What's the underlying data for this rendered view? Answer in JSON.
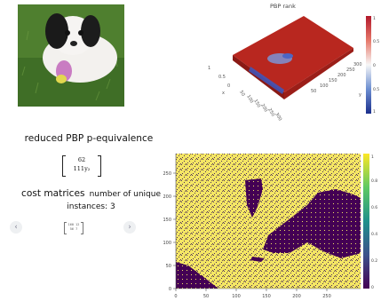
{
  "plot3d": {
    "title": "PBP rank",
    "axis_ticks": [
      "1",
      "0.5",
      "0",
      "50",
      "100",
      "150",
      "200",
      "250",
      "300"
    ],
    "yaxis_ticks": [
      "50",
      "100",
      "150",
      "200",
      "250",
      "300"
    ],
    "x_label": "x",
    "y_label": "y",
    "colorbar_ticks": [
      "1",
      "0.5",
      "0",
      "0.5",
      "1"
    ]
  },
  "equivalence_title": "reduced PBP p-equivalence",
  "matrix_main": {
    "row1": "62",
    "row2": "111y₂"
  },
  "cost_title": "cost matrices",
  "cost_subtitle": "number of unique",
  "cost_instances": "instances: 3",
  "nav": {
    "prev": "‹",
    "next": "›"
  },
  "matrix_small": {
    "row1": "160  12",
    "row2": "56    7"
  },
  "heatmap": {
    "x_ticks": [
      "0",
      "50",
      "100",
      "150",
      "200",
      "250"
    ],
    "y_ticks": [
      "0",
      "50",
      "100",
      "150",
      "200",
      "250"
    ],
    "colorbar_ticks": [
      "0",
      "0.2",
      "0.4",
      "0.6",
      "0.8",
      "1"
    ],
    "colors": {
      "high": "#f4e664",
      "low": "#440154"
    }
  }
}
